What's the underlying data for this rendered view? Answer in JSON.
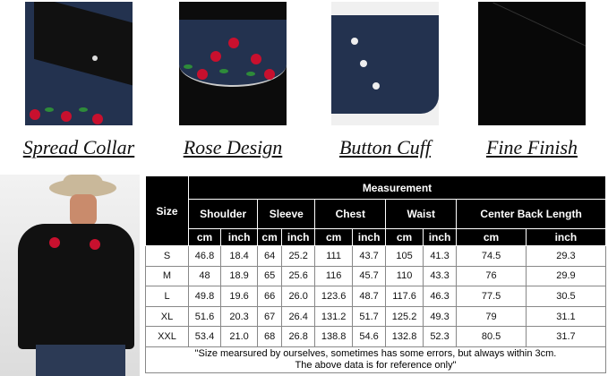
{
  "features": [
    {
      "label": "Spread Collar"
    },
    {
      "label": "Rose Design"
    },
    {
      "label": "Button Cuff"
    },
    {
      "label": "Fine Finish"
    }
  ],
  "table": {
    "size_header": "Size",
    "measurement_header": "Measurement",
    "columns": [
      "Shoulder",
      "Sleeve",
      "Chest",
      "Waist",
      "Center Back Length"
    ],
    "units": [
      "cm",
      "inch"
    ],
    "rows": [
      {
        "size": "S",
        "values": [
          "46.8",
          "18.4",
          "64",
          "25.2",
          "111",
          "43.7",
          "105",
          "41.3",
          "74.5",
          "29.3"
        ]
      },
      {
        "size": "M",
        "values": [
          "48",
          "18.9",
          "65",
          "25.6",
          "116",
          "45.7",
          "110",
          "43.3",
          "76",
          "29.9"
        ]
      },
      {
        "size": "L",
        "values": [
          "49.8",
          "19.6",
          "66",
          "26.0",
          "123.6",
          "48.7",
          "117.6",
          "46.3",
          "77.5",
          "30.5"
        ]
      },
      {
        "size": "XL",
        "values": [
          "51.6",
          "20.3",
          "67",
          "26.4",
          "131.2",
          "51.7",
          "125.2",
          "49.3",
          "79",
          "31.1"
        ]
      },
      {
        "size": "XXL",
        "values": [
          "53.4",
          "21.0",
          "68",
          "26.8",
          "138.8",
          "54.6",
          "132.8",
          "52.3",
          "80.5",
          "31.7"
        ]
      }
    ],
    "note_line1": "\"Size mearsured by ourselves, sometimes has some errors, but always within 3cm.",
    "note_line2": "The above data is for reference only\""
  }
}
